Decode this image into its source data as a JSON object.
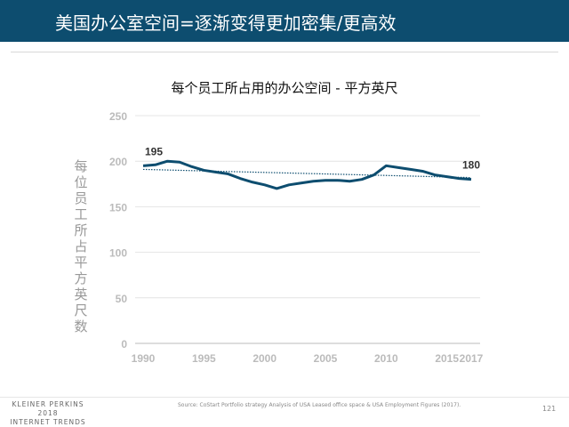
{
  "header": {
    "title": "美国办公室空间=逐渐变得更加密集/更高效"
  },
  "chart_data": {
    "type": "line",
    "title": "每个员工所占用的办公空间 - 平方英尺",
    "ylabel": "每位员工所占平方英尺数",
    "xlabel": "",
    "ylim": [
      0,
      250
    ],
    "xlim": [
      1990,
      2017
    ],
    "yticks": [
      0,
      50,
      100,
      150,
      200,
      250
    ],
    "xticks": [
      1990,
      1995,
      2000,
      2005,
      2010,
      2015,
      2017
    ],
    "grid": "horizontal",
    "line_color": "#0d4d6f",
    "x": [
      1990,
      1991,
      1992,
      1993,
      1994,
      1995,
      1996,
      1997,
      1998,
      1999,
      2000,
      2001,
      2002,
      2003,
      2004,
      2005,
      2006,
      2007,
      2008,
      2009,
      2010,
      2011,
      2012,
      2013,
      2014,
      2015,
      2016,
      2017
    ],
    "series": [
      {
        "values": [
          195,
          196,
          200,
          199,
          194,
          190,
          188,
          186,
          181,
          177,
          174,
          170,
          174,
          176,
          178,
          179,
          179,
          178,
          180,
          185,
          195,
          193,
          191,
          189,
          185,
          183,
          181,
          180
        ]
      }
    ],
    "trendline": {
      "style": "dotted",
      "x": [
        1990,
        2017
      ],
      "values": [
        191,
        182
      ]
    },
    "annotations": [
      {
        "x": 1990,
        "text": "195"
      },
      {
        "x": 2017,
        "text": "180"
      }
    ]
  },
  "footer": {
    "brand_lines": [
      "KLEINER PERKINS",
      "2018",
      "INTERNET TRENDS"
    ],
    "source": "Source: CoStart Portfolio strategy Analysis of USA Leased office space & USA Employment Figures (2017).",
    "page": "121"
  }
}
